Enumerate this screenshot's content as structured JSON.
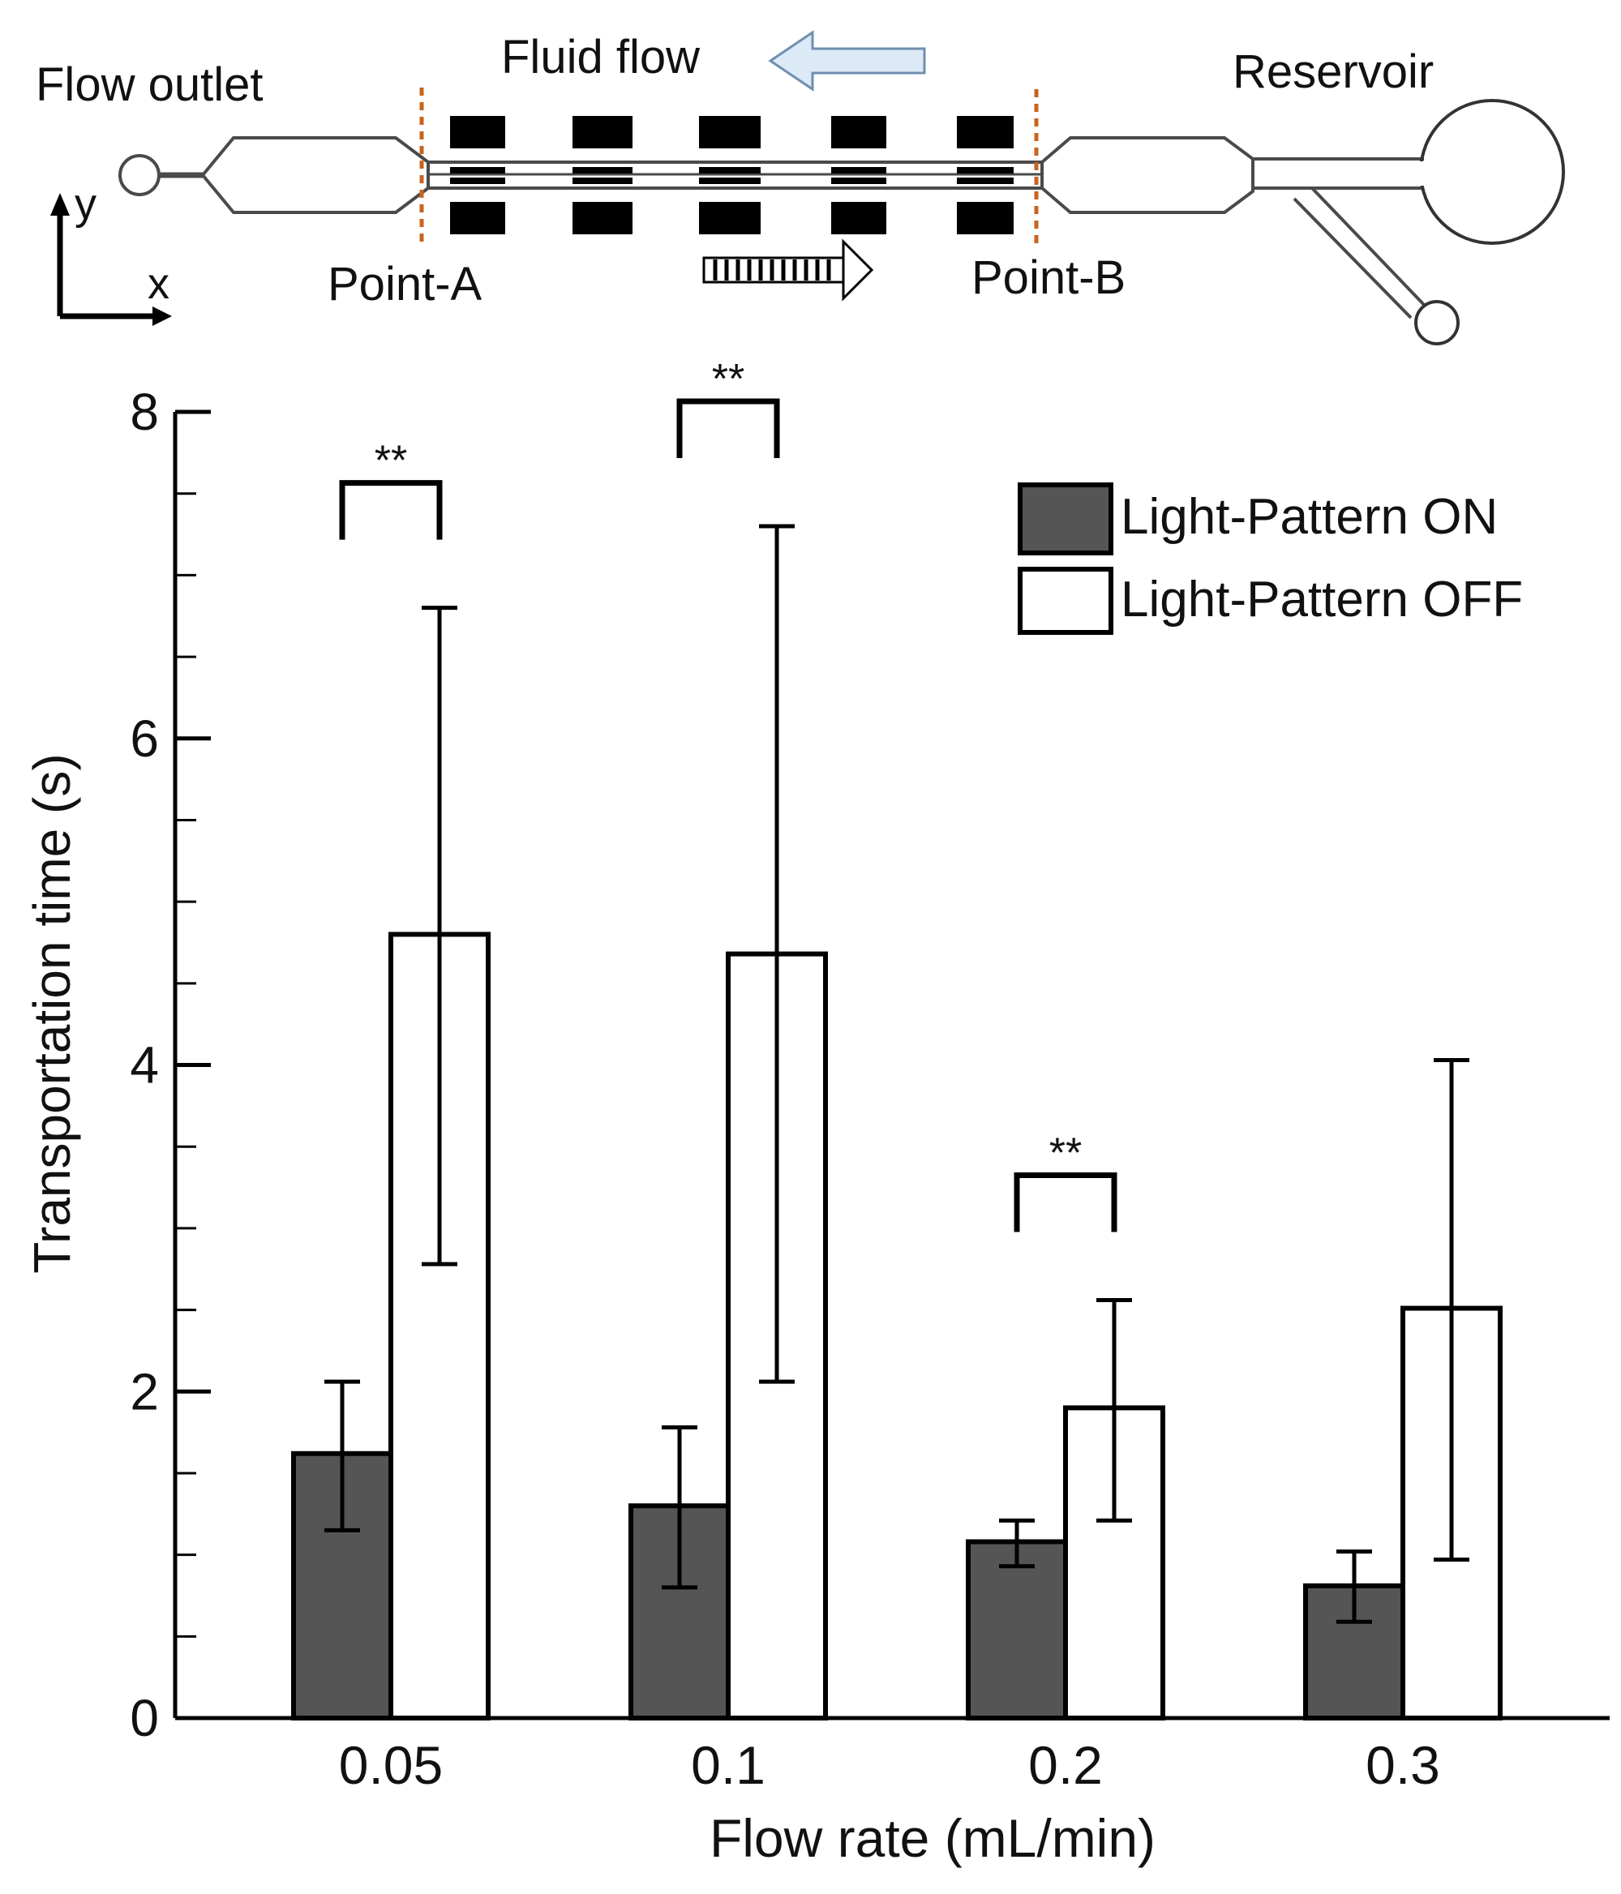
{
  "diagram": {
    "labels": {
      "flow_outlet": "Flow outlet",
      "fluid_flow": "Fluid flow",
      "reservoir": "Reservoir",
      "point_a": "Point-A",
      "point_b": "Point-B",
      "axis_x": "x",
      "axis_y": "y"
    },
    "colors": {
      "channel_stroke": "#4a4a4a",
      "light_pattern": "#000000",
      "boundary_dash": "#c8641e",
      "flow_arrow_fill": "#dce9f7",
      "flow_arrow_stroke": "#6f8fb0"
    }
  },
  "chart_data": {
    "type": "bar",
    "title": "",
    "xlabel": "Flow rate (mL/min)",
    "ylabel": "Transportation time (s)",
    "ylim": [
      0,
      8
    ],
    "y_ticks": [
      "0",
      "2",
      "4",
      "6",
      "8"
    ],
    "y_minor_step": 0.5,
    "categories": [
      "0.05",
      "0.1",
      "0.2",
      "0.3"
    ],
    "series": [
      {
        "name": "Light-Pattern ON",
        "color": "#555555",
        "values": [
          1.62,
          1.3,
          1.08,
          0.81
        ],
        "error_low": [
          1.15,
          0.8,
          0.93,
          0.59
        ],
        "error_high": [
          2.06,
          1.78,
          1.21,
          1.02
        ]
      },
      {
        "name": "Light-Pattern OFF",
        "color": "#ffffff",
        "values": [
          4.8,
          4.68,
          1.9,
          2.51
        ],
        "error_low": [
          2.78,
          2.06,
          1.21,
          0.97
        ],
        "error_high": [
          6.8,
          7.3,
          2.56,
          4.03
        ]
      }
    ],
    "significance": [
      {
        "category": "0.05",
        "label": "**"
      },
      {
        "category": "0.1",
        "label": "**"
      },
      {
        "category": "0.2",
        "label": "**"
      }
    ],
    "legend_position": "top-right"
  }
}
